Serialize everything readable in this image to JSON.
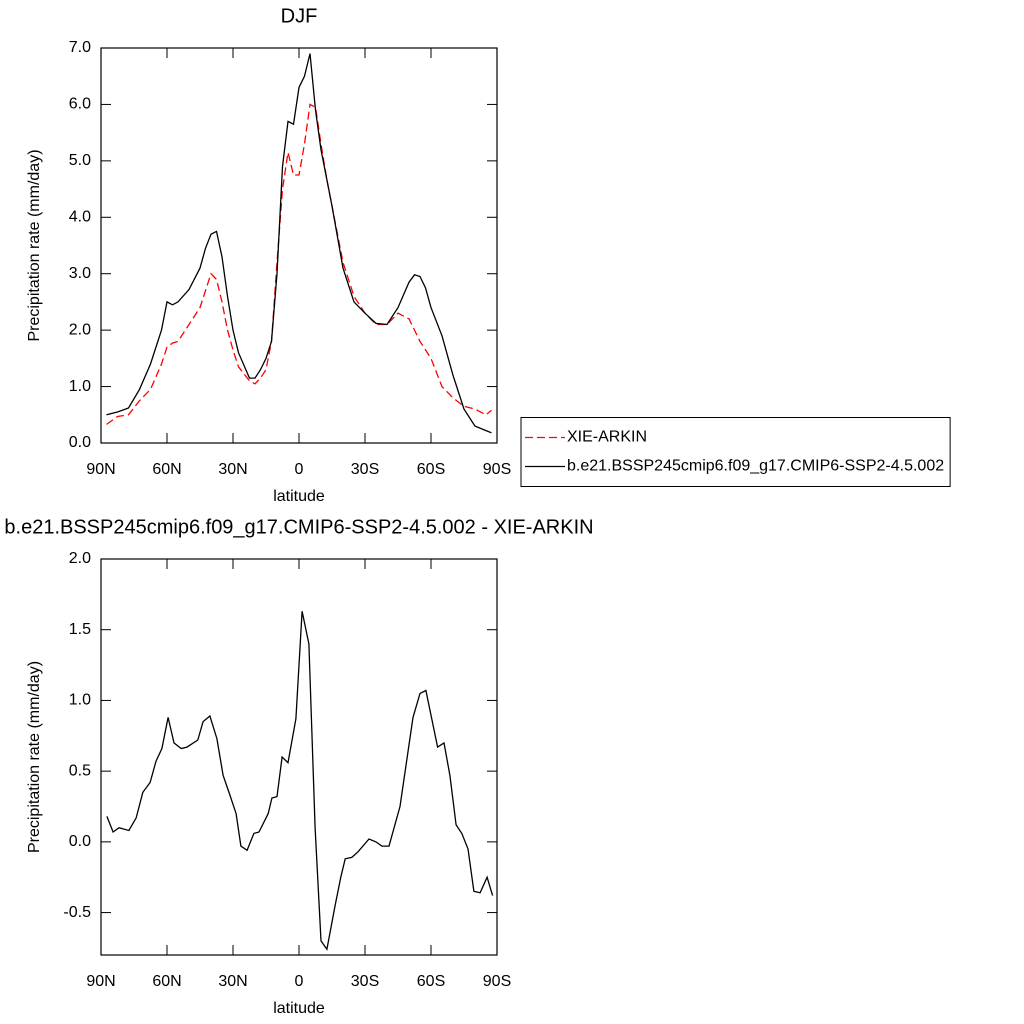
{
  "chart_data": [
    {
      "type": "line",
      "title": "DJF",
      "xlabel": "latitude",
      "ylabel": "Precipitation rate (mm/day)",
      "x": [
        87.5,
        82.5,
        77.5,
        72.5,
        67.5,
        62.5,
        60,
        57.5,
        55,
        50,
        45,
        42.5,
        40,
        37.5,
        35,
        32.5,
        30,
        27.5,
        22.5,
        20,
        17.5,
        15,
        12.5,
        10,
        7.5,
        5,
        2.5,
        0,
        -2.5,
        -5,
        -7.5,
        -10,
        -12.5,
        -15,
        -20,
        -25,
        -30,
        -35,
        -40,
        -45,
        -50,
        -52.5,
        -55,
        -57.5,
        -60,
        -65,
        -70,
        -75,
        -80,
        -85,
        -87.5
      ],
      "series": [
        {
          "name": "XIE-ARKIN",
          "color": "#ff0000",
          "line_style": "dashed",
          "values": [
            0.33,
            0.47,
            0.5,
            0.75,
            0.95,
            1.4,
            1.7,
            1.77,
            1.8,
            2.1,
            2.4,
            2.7,
            3.0,
            2.9,
            2.5,
            2.0,
            1.65,
            1.35,
            1.1,
            1.05,
            1.15,
            1.3,
            1.8,
            3.2,
            4.5,
            5.15,
            4.75,
            4.75,
            5.3,
            6.0,
            5.95,
            5.3,
            4.7,
            4.2,
            3.2,
            2.6,
            2.3,
            2.1,
            2.1,
            2.3,
            2.2,
            2.0,
            1.8,
            1.65,
            1.5,
            1.0,
            0.8,
            0.65,
            0.6,
            0.5,
            0.58
          ]
        },
        {
          "name": "b.e21.BSSP245cmip6.f09_g17.CMIP6-SSP2-4.5.002",
          "color": "#000000",
          "line_style": "solid",
          "values": [
            0.5,
            0.55,
            0.62,
            0.95,
            1.4,
            2.0,
            2.5,
            2.45,
            2.5,
            2.72,
            3.1,
            3.45,
            3.7,
            3.75,
            3.3,
            2.6,
            2.0,
            1.6,
            1.15,
            1.15,
            1.3,
            1.5,
            1.8,
            3.0,
            4.9,
            5.7,
            5.65,
            6.3,
            6.5,
            6.9,
            5.9,
            5.2,
            4.7,
            4.2,
            3.1,
            2.5,
            2.3,
            2.12,
            2.1,
            2.4,
            2.85,
            2.98,
            2.95,
            2.75,
            2.4,
            1.9,
            1.2,
            0.6,
            0.3,
            0.22,
            0.18
          ]
        }
      ],
      "xlim": [
        90,
        -90
      ],
      "xticks": [
        {
          "value": 90,
          "label": "90N"
        },
        {
          "value": 60,
          "label": "60N"
        },
        {
          "value": 30,
          "label": "30N"
        },
        0,
        {
          "value": -30,
          "label": "30S"
        },
        {
          "value": -60,
          "label": "60S"
        },
        {
          "value": -90,
          "label": "90S"
        }
      ],
      "ylim": [
        0,
        7
      ],
      "yticks": [
        {
          "value": 0,
          "label": "0.0"
        },
        {
          "value": 1,
          "label": "1.0"
        },
        {
          "value": 2,
          "label": "2.0"
        },
        {
          "value": 3,
          "label": "3.0"
        },
        {
          "value": 4,
          "label": "4.0"
        },
        {
          "value": 5,
          "label": "5.0"
        },
        {
          "value": 6,
          "label": "6.0"
        },
        {
          "value": 7,
          "label": "7.0"
        }
      ],
      "legend": "right"
    },
    {
      "type": "line",
      "title": "b.e21.BSSP245cmip6.f09_g17.CMIP6-SSP2-4.5.002 - XIE-ARKIN",
      "xlabel": "latitude",
      "ylabel": "Precipitation rate (mm/day)",
      "x": [
        87.3,
        84.5,
        81.8,
        77.3,
        74,
        71,
        67.7,
        65,
        62.3,
        59.5,
        56.8,
        53.6,
        50.9,
        46,
        43.6,
        40.5,
        37.3,
        34.5,
        31.8,
        28.6,
        26.4,
        23.6,
        20.5,
        18.2,
        14,
        12.3,
        10,
        7.7,
        5,
        1.4,
        -1.4,
        -4.5,
        -7.3,
        -10,
        -12.7,
        -16.4,
        -19,
        -21,
        -24,
        -26.8,
        -31.8,
        -35,
        -37.7,
        -40.9,
        -45.9,
        -51.8,
        -55,
        -57.7,
        -63,
        -65.9,
        -68.6,
        -71.4,
        -74,
        -76.8,
        -79.5,
        -82.3,
        -85.5,
        -88
      ],
      "values": [
        0.18,
        0.07,
        0.1,
        0.08,
        0.17,
        0.35,
        0.42,
        0.57,
        0.66,
        0.88,
        0.7,
        0.66,
        0.67,
        0.72,
        0.85,
        0.89,
        0.73,
        0.47,
        0.35,
        0.2,
        -0.03,
        -0.06,
        0.06,
        0.07,
        0.2,
        0.31,
        0.32,
        0.6,
        0.56,
        0.87,
        1.63,
        1.4,
        0.1,
        -0.7,
        -0.76,
        -0.45,
        -0.25,
        -0.12,
        -0.11,
        -0.07,
        0.02,
        0,
        -0.03,
        -0.03,
        0.25,
        0.88,
        1.05,
        1.07,
        0.67,
        0.7,
        0.47,
        0.12,
        0.06,
        -0.05,
        -0.35,
        -0.36,
        -0.25,
        -0.38
      ],
      "color": "#000000",
      "xlim": [
        90,
        -90
      ],
      "xticks": [
        {
          "value": 90,
          "label": "90N"
        },
        {
          "value": 60,
          "label": "60N"
        },
        {
          "value": 30,
          "label": "30N"
        },
        0,
        {
          "value": -30,
          "label": "30S"
        },
        {
          "value": -60,
          "label": "60S"
        },
        {
          "value": -90,
          "label": "90S"
        }
      ],
      "ylim": [
        -0.8,
        2
      ],
      "yticks": [
        {
          "value": -0.5,
          "label": "-0.5"
        },
        {
          "value": 0,
          "label": "0.0"
        },
        0.5,
        {
          "value": 1,
          "label": "1.0"
        },
        1.5,
        {
          "value": 2,
          "label": "2.0"
        }
      ]
    }
  ]
}
